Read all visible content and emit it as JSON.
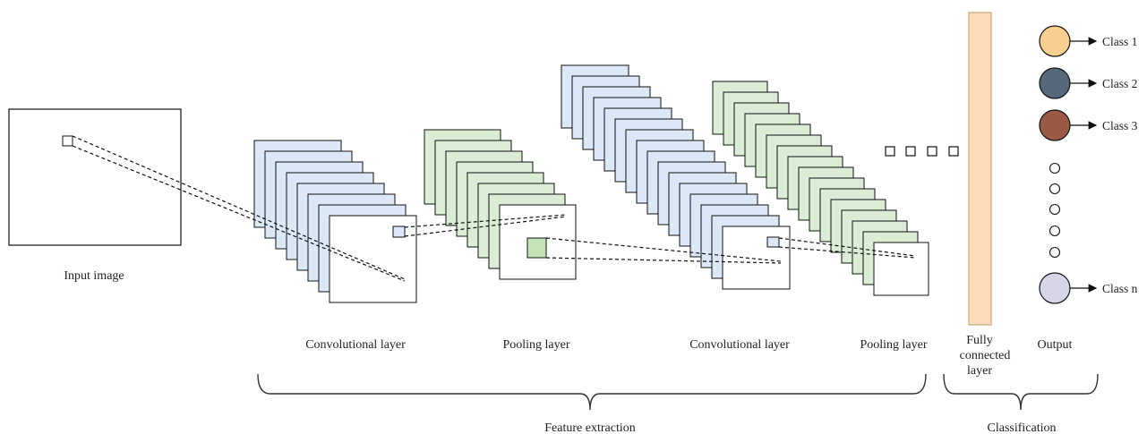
{
  "labels": {
    "input_image": "Input image",
    "conv_layer_1": "Convolutional layer",
    "pooling_layer_1": "Pooling layer",
    "conv_layer_2": "Convolutional layer",
    "pooling_layer_2": "Pooling layer",
    "fully_connected": [
      "Fully",
      "connected",
      "layer"
    ],
    "output": "Output",
    "feature_extraction": "Feature extraction",
    "classification": "Classification"
  },
  "classes": [
    {
      "label": "Class 1",
      "color": "#f8cf8f"
    },
    {
      "label": "Class 2",
      "color": "#56687a"
    },
    {
      "label": "Class 3",
      "color": "#9b5a45"
    },
    {
      "label": "Class n",
      "color": "#d7d5e8"
    }
  ],
  "colors": {
    "conv": "#dce8f8",
    "pool": "#dcedd5",
    "fc": "#fbdcb8",
    "stroke": "#111111"
  }
}
